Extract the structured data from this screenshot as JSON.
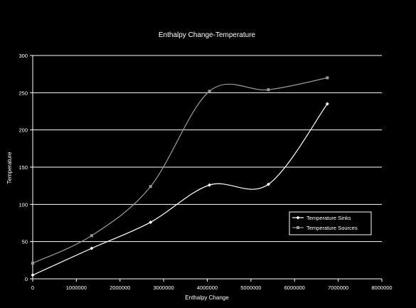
{
  "chart_data": {
    "type": "line",
    "title": "Enthalpy Change-Temperature",
    "xlabel": "Enthalpy Change",
    "ylabel": "Temperature",
    "xlim": [
      0,
      8000000
    ],
    "ylim": [
      0,
      300
    ],
    "x_ticks": [
      "0",
      "1000000",
      "2000000",
      "3000000",
      "4000000",
      "5000000",
      "6000000",
      "7000000",
      "8000000"
    ],
    "y_ticks": [
      "0",
      "50",
      "100",
      "150",
      "200",
      "250",
      "300"
    ],
    "grid": "horizontal",
    "smooth": true,
    "legend_position": "right",
    "background": "#000000",
    "series": [
      {
        "name": "Temperature Sinks",
        "color": "#ffffff",
        "marker": "diamond",
        "x": [
          0,
          1350000,
          2700000,
          4050000,
          5400000,
          6750000
        ],
        "y": [
          5,
          41,
          76,
          126,
          127,
          235
        ]
      },
      {
        "name": "Temperature Sources",
        "color": "#9a9a9a",
        "marker": "square",
        "x": [
          0,
          1350000,
          2700000,
          4050000,
          5400000,
          6750000
        ],
        "y": [
          21,
          58,
          124,
          252,
          254,
          270
        ]
      }
    ]
  }
}
